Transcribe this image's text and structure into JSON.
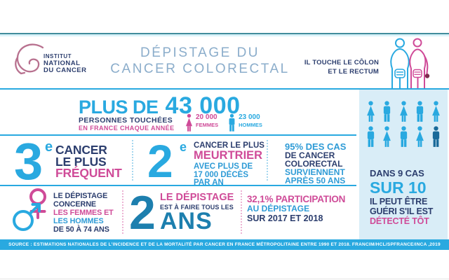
{
  "colors": {
    "cyan": "#29a9e0",
    "navy": "#2c3e6e",
    "pink": "#cf4b98",
    "medium_blue": "#2e9bd6",
    "teal_number": "#1d7fae",
    "panel_bg": "#d9edf7",
    "person_dark": "#1a6a99",
    "title_blue": "#8badcb",
    "logo_rose": "#b8718f",
    "top_rule_teal": "#418c9c",
    "source_bar": "#29a9e0"
  },
  "header": {
    "logo": {
      "line1": "INSTITUT",
      "line2": "NATIONAL",
      "line3": "DU CANCER"
    },
    "title_line1": "DÉPISTAGE DU",
    "title_line2": "CANCER COLORECTAL",
    "tagline_line1": "IL TOUCHE LE CÔLON",
    "tagline_line2": "ET LE RECTUM"
  },
  "stats_row": {
    "plus_de": "PLUS DE",
    "big_number": "43 000",
    "sub1": "PERSONNES TOUCHÉES",
    "sub2": "EN FRANCE CHAQUE ANNÉE",
    "women": {
      "count": "20 000",
      "label": "FEMMES"
    },
    "men": {
      "count": "23 000",
      "label": "HOMMES"
    }
  },
  "facts_row": {
    "fact1": {
      "number": "3",
      "sup": "e",
      "line1": "CANCER",
      "line2": "LE PLUS",
      "line3": "FRÉQUENT"
    },
    "fact2": {
      "number": "2",
      "sup": "e",
      "line1": "CANCER LE PLUS",
      "line2": "MEURTRIER",
      "line3": "AVEC PLUS DE",
      "line4": "17 000 DÉCÈS",
      "line5": "PAR AN"
    },
    "fact3": {
      "line1": "95% DES CAS",
      "line2": "DE CANCER",
      "line3": "COLORECTAL",
      "line4": "SURVIENNENT",
      "line5": "APRÈS 50 ANS"
    }
  },
  "screening_row": {
    "who": {
      "line1": "LE DÉPISTAGE",
      "line2": "CONCERNE",
      "line3": "LES FEMMES ET",
      "line4": "LES HOMMES",
      "line5": "DE 50 À 74 ANS"
    },
    "frequency": {
      "number": "2",
      "line1": "LE DÉPISTAGE",
      "line2": "EST À FAIRE TOUS LES",
      "unit": "ANS"
    },
    "participation": {
      "line1": "32,1% PARTICIPATION",
      "line2": "AU DÉPISTAGE",
      "line3": "SUR 2017 ET 2018"
    }
  },
  "cure_panel": {
    "people_rows": [
      [
        "female",
        "male",
        "female",
        "male",
        "female"
      ],
      [
        "male",
        "female",
        "male",
        "female",
        "male-dark"
      ]
    ],
    "line1": "DANS 9 CAS",
    "line2": "SUR 10",
    "line3": "IL PEUT ÊTRE",
    "line4": "GUÉRI S'IL EST",
    "line5": "DÉTECTÉ TÔT"
  },
  "source": "SOURCE : ESTIMATIONS NATIONALES DE L'INCIDENCE ET DE LA MORTALITÉ PAR CANCER EN FRANCE MÉTROPOLITAINE ENTRE 1990 ET 2018. FRANCIM/HCL/SPFRANCE/INCA ,2019"
}
